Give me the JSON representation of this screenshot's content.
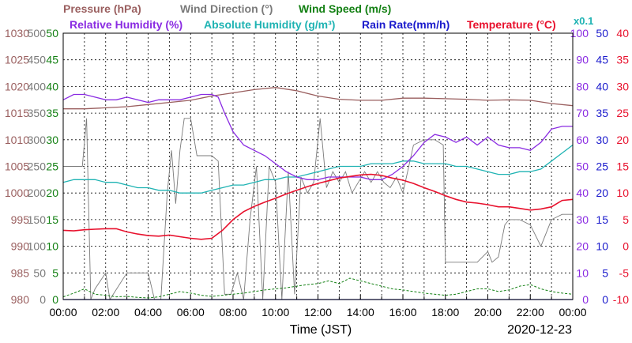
{
  "chart_data": {
    "type": "line",
    "legend": {
      "row1": [
        {
          "label": "Pressure (hPa)",
          "color": "#9a5f5f"
        },
        {
          "label": "Wind Direction (°)",
          "color": "#7a7a7a"
        },
        {
          "label": "Wind Speed (m/s)",
          "color": "#138013"
        }
      ],
      "row2": [
        {
          "label": "Relative Humidity (%)",
          "color": "#8a2be2"
        },
        {
          "label": "Absolute Humidity (g/m³)",
          "color": "#1fb3b3"
        },
        {
          "label": "Rain Rate(mm/h)",
          "color": "#1a1acc"
        },
        {
          "label": "Temperature (°C)",
          "color": "#e8112d"
        }
      ],
      "multiplier": "x0.1"
    },
    "xlabel": "Time (JST)",
    "date": "2020-12-23",
    "x_ticks": [
      "00:00",
      "02:00",
      "04:00",
      "06:00",
      "08:00",
      "10:00",
      "12:00",
      "14:00",
      "16:00",
      "18:00",
      "20:00",
      "22:00",
      "00:00"
    ],
    "xlim_hours": [
      0,
      24
    ],
    "axes": {
      "pressure": {
        "ticks": [
          1030,
          1025,
          1020,
          1015,
          1010,
          1005,
          1000,
          995,
          990,
          985,
          980
        ],
        "ylim": [
          980,
          1030
        ],
        "color": "#9a5f5f"
      },
      "wind_direction": {
        "ticks": [
          500,
          450,
          400,
          350,
          300,
          250,
          200,
          150,
          100,
          50,
          0
        ],
        "ylim": [
          0,
          500
        ],
        "color": "#7a7a7a"
      },
      "wind_speed": {
        "ticks": [
          50,
          45,
          40,
          35,
          30,
          25,
          20,
          15,
          10,
          5,
          0
        ],
        "ylim": [
          0,
          50
        ],
        "color": "#138013"
      },
      "humidity": {
        "ticks": [
          100,
          90,
          80,
          70,
          60,
          50,
          40,
          30,
          20,
          10,
          0
        ],
        "ylim": [
          0,
          100
        ],
        "color": "#8a2be2"
      },
      "rain_rate": {
        "ticks": [
          50,
          45,
          40,
          35,
          30,
          25,
          20,
          15,
          10,
          5,
          0
        ],
        "ylim": [
          0,
          50
        ],
        "color": "#1a1acc"
      },
      "temperature": {
        "ticks": [
          40,
          35,
          30,
          25,
          20,
          15,
          10,
          5,
          0,
          -5,
          -10
        ],
        "ylim": [
          -10,
          40
        ],
        "color": "#e8112d"
      }
    },
    "series": [
      {
        "name": "Pressure (hPa)",
        "axis": "pressure",
        "color": "#9a5f5f",
        "x": [
          0,
          1,
          2,
          3,
          4,
          5,
          6,
          7,
          8,
          9,
          10,
          11,
          12,
          13,
          14,
          15,
          16,
          17,
          18,
          19,
          20,
          21,
          22,
          23,
          24
        ],
        "y": [
          1015.8,
          1015.8,
          1016.0,
          1016.2,
          1016.6,
          1017.0,
          1017.4,
          1018.2,
          1018.8,
          1019.4,
          1019.8,
          1019.2,
          1018.2,
          1017.6,
          1017.4,
          1017.4,
          1017.8,
          1017.8,
          1017.7,
          1017.6,
          1017.4,
          1017.5,
          1017.4,
          1016.8,
          1016.4
        ]
      },
      {
        "name": "Wind Direction (°)",
        "axis": "wind_direction",
        "color": "#7a7a7a",
        "x": [
          0,
          0.9,
          1.1,
          1.3,
          1.5,
          2.0,
          2.2,
          3.0,
          4.0,
          4.3,
          4.6,
          4.9,
          5.1,
          5.3,
          5.5,
          5.7,
          6.0,
          6.3,
          6.6,
          7.0,
          7.3,
          7.6,
          7.9,
          8.2,
          8.5,
          8.8,
          9.1,
          9.4,
          9.7,
          10.0,
          10.3,
          10.6,
          10.9,
          11.2,
          11.5,
          11.8,
          12.1,
          12.4,
          12.7,
          13.0,
          13.3,
          13.6,
          13.9,
          14.2,
          14.5,
          14.8,
          15.1,
          15.4,
          15.7,
          16.0,
          16.5,
          17.0,
          17.5,
          17.9,
          18.0,
          18.5,
          19.0,
          19.5,
          20.0,
          20.2,
          20.5,
          20.8,
          21.0,
          21.5,
          22.0,
          22.5,
          23.0,
          23.5,
          24.0
        ],
        "y": [
          250,
          250,
          340,
          0,
          20,
          50,
          0,
          50,
          50,
          0,
          0,
          200,
          280,
          180,
          280,
          340,
          340,
          270,
          270,
          270,
          260,
          10,
          10,
          50,
          0,
          150,
          250,
          0,
          250,
          220,
          0,
          240,
          10,
          230,
          200,
          220,
          340,
          210,
          240,
          220,
          240,
          200,
          220,
          240,
          220,
          240,
          220,
          210,
          230,
          200,
          290,
          300,
          300,
          290,
          70,
          70,
          70,
          70,
          90,
          70,
          80,
          140,
          150,
          150,
          140,
          100,
          150,
          160,
          160
        ]
      },
      {
        "name": "Wind Speed (m/s)",
        "axis": "wind_speed",
        "color": "#138013",
        "x": [
          0,
          0.5,
          1,
          1.5,
          2,
          2.5,
          3,
          3.5,
          4,
          4.5,
          5,
          5.5,
          6,
          6.5,
          7,
          7.5,
          8,
          8.5,
          9,
          9.5,
          10,
          10.5,
          11,
          11.5,
          12,
          12.5,
          13,
          13.5,
          14,
          14.5,
          15,
          15.5,
          16,
          16.5,
          17,
          17.5,
          18,
          18.5,
          19,
          19.5,
          20,
          20.5,
          21,
          21.5,
          22,
          22.5,
          23,
          23.5,
          24
        ],
        "y": [
          0.5,
          1.2,
          2.0,
          1.0,
          0.8,
          0.5,
          0.6,
          0.4,
          0.3,
          0.5,
          1.0,
          1.5,
          1.2,
          0.8,
          0.6,
          0.8,
          1.0,
          1.2,
          1.5,
          1.8,
          2.0,
          2.2,
          2.5,
          2.8,
          3.0,
          3.5,
          3.0,
          4.0,
          3.5,
          3.0,
          2.5,
          2.0,
          1.8,
          1.5,
          1.2,
          1.0,
          0.8,
          1.0,
          1.5,
          2.0,
          2.0,
          1.5,
          1.8,
          2.5,
          2.8,
          2.0,
          1.5,
          1.2,
          1.0
        ]
      },
      {
        "name": "Relative Humidity (%)",
        "axis": "humidity",
        "color": "#8a2be2",
        "x": [
          0,
          0.5,
          1,
          1.5,
          2,
          2.5,
          3,
          3.5,
          4,
          4.5,
          5,
          5.5,
          6,
          6.5,
          7,
          7.3,
          7.6,
          8,
          8.5,
          9,
          9.5,
          10,
          10.5,
          11,
          11.5,
          12,
          12.5,
          13,
          13.5,
          14,
          14.5,
          15,
          15.5,
          16,
          16.5,
          17,
          17.5,
          18,
          18.5,
          19,
          19.5,
          20,
          20.5,
          21,
          21.5,
          22,
          22.5,
          23,
          23.5,
          24
        ],
        "y": [
          75,
          77,
          77,
          76,
          75,
          75,
          76,
          75,
          74,
          75,
          75,
          75,
          76,
          77,
          77,
          76,
          70,
          63,
          58,
          56,
          54,
          51,
          48,
          46,
          45,
          45,
          46,
          46,
          46,
          46,
          45,
          45,
          47,
          50,
          54,
          59,
          62,
          61,
          59,
          61,
          58,
          61,
          58,
          57,
          57,
          56,
          59,
          64,
          65,
          65
        ]
      },
      {
        "name": "Absolute Humidity (g/m³)",
        "axis": "humidity",
        "color": "#1fb3b3",
        "x": [
          0,
          0.5,
          1,
          1.5,
          2,
          2.5,
          3,
          3.5,
          4,
          4.5,
          5,
          5.5,
          6,
          6.5,
          7,
          7.5,
          8,
          8.5,
          9,
          9.5,
          10,
          10.5,
          11,
          11.5,
          12,
          12.5,
          13,
          13.5,
          14,
          14.5,
          15,
          15.5,
          16,
          16.5,
          17,
          17.5,
          18,
          18.5,
          19,
          19.5,
          20,
          20.5,
          21,
          21.5,
          22,
          22.5,
          23,
          23.5,
          24
        ],
        "y": [
          44,
          45,
          45,
          45,
          44,
          44,
          43,
          42,
          42,
          41,
          41,
          40,
          40,
          40,
          41,
          42,
          43,
          43,
          44,
          45,
          45,
          46,
          46,
          47,
          48,
          49,
          50,
          50,
          50,
          51,
          51,
          51,
          52,
          52,
          51,
          51,
          51,
          50,
          50,
          49,
          48,
          47,
          47,
          48,
          48,
          49,
          52,
          55,
          58
        ]
      },
      {
        "name": "Rain Rate(mm/h)",
        "axis": "rain_rate",
        "color": "#1a1acc",
        "x": [
          0,
          24
        ],
        "y": [
          0,
          0
        ]
      },
      {
        "name": "Temperature (°C)",
        "axis": "temperature",
        "color": "#e8112d",
        "x": [
          0,
          0.5,
          1,
          1.5,
          2,
          2.5,
          3,
          3.5,
          4,
          4.5,
          5,
          5.5,
          6,
          6.5,
          7,
          7.5,
          8,
          8.5,
          9,
          9.5,
          10,
          10.5,
          11,
          11.5,
          12,
          12.5,
          13,
          13.5,
          14,
          14.5,
          15,
          15.5,
          16,
          16.5,
          17,
          17.5,
          18,
          18.5,
          19,
          19.5,
          20,
          20.5,
          21,
          21.5,
          22,
          22.5,
          23,
          23.5,
          24
        ],
        "y": [
          3.0,
          2.9,
          3.1,
          3.2,
          3.3,
          3.3,
          2.7,
          2.3,
          2.0,
          1.9,
          2.1,
          1.8,
          1.5,
          1.3,
          1.5,
          3.0,
          5.0,
          6.5,
          7.5,
          8.3,
          9.0,
          9.8,
          10.5,
          11.2,
          11.8,
          12.3,
          12.8,
          13.1,
          13.4,
          13.5,
          13.3,
          12.8,
          12.4,
          11.8,
          11.0,
          10.3,
          9.5,
          8.8,
          8.3,
          8.1,
          7.8,
          7.4,
          7.4,
          7.1,
          6.8,
          7.0,
          7.4,
          8.6,
          8.8
        ]
      }
    ]
  }
}
